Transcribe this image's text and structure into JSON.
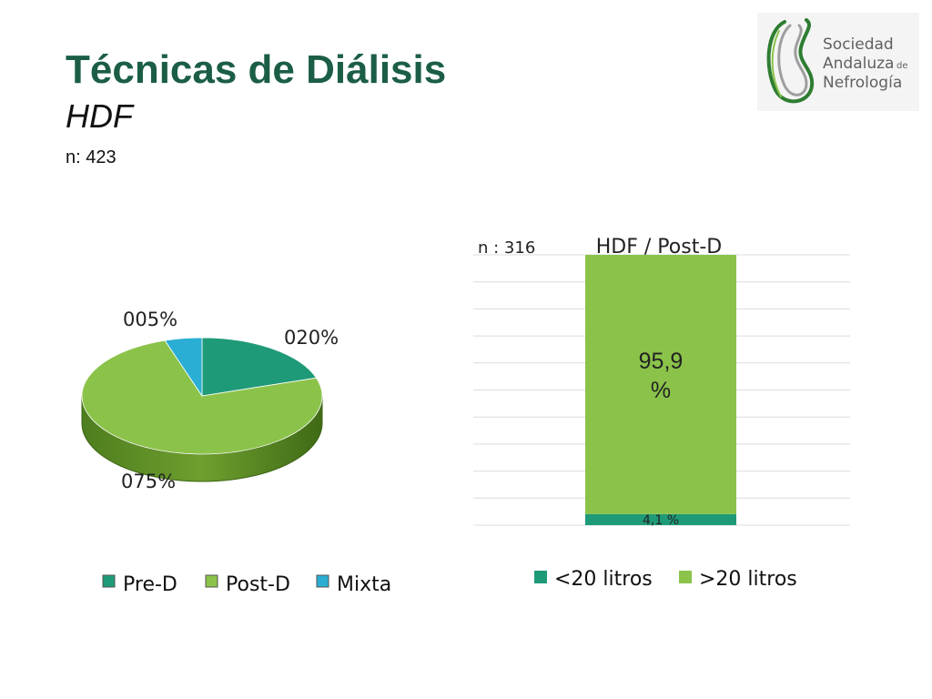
{
  "header": {
    "title": "Técnicas de Diálisis",
    "subtitle": "HDF",
    "n_label": "n: 423"
  },
  "logo": {
    "line1": "Sociedad",
    "line2": "Andaluza",
    "line2_small": "de",
    "line3": "Nefrología"
  },
  "colors": {
    "title": "#1b5e45",
    "pre_d": "#1f9a78",
    "post_d": "#8bc34a",
    "mixta": "#2aaed4",
    "lt20": "#1f9a78",
    "gt20": "#8bc34a"
  },
  "chart_data": [
    {
      "type": "pie",
      "categories": [
        "Pre-D",
        "Post-D",
        "Mixta"
      ],
      "values": [
        20,
        75,
        5
      ],
      "data_labels": [
        "020%",
        "075%",
        "005%"
      ],
      "legend": [
        "Pre-D",
        "Post-D",
        "Mixta"
      ],
      "legend_position": "bottom"
    },
    {
      "type": "bar",
      "stacked": true,
      "title": "HDF / Post-D",
      "annotation": "n : 316",
      "categories": [
        "HDF / Post-D"
      ],
      "series": [
        {
          "name": "<20 litros",
          "values": [
            4.1
          ],
          "label": "4,1 %"
        },
        {
          "name": ">20 litros",
          "values": [
            95.9
          ],
          "label": "95,9 %"
        }
      ],
      "ylim": [
        0,
        100
      ],
      "grid": true,
      "legend_position": "bottom"
    }
  ]
}
